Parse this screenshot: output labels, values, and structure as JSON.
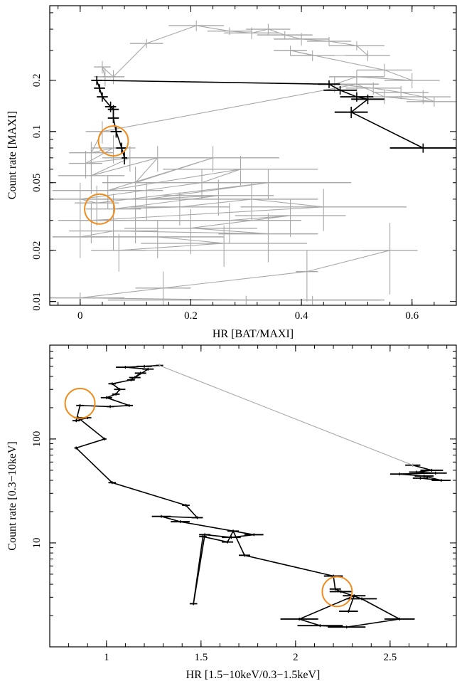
{
  "colors": {
    "grey": "#a8a8a8",
    "black": "#000000",
    "circle": "#f08c1e"
  },
  "chart_data": [
    {
      "type": "scatter",
      "title": "",
      "xlabel": "HR [BAT/MAXI]",
      "ylabel": "Count rate  [MAXI]",
      "xscale": "linear",
      "yscale": "log",
      "xlim": [
        -0.055,
        0.68
      ],
      "ylim": [
        0.0095,
        0.55
      ],
      "xticks": [
        {
          "v": 0,
          "label": "0"
        },
        {
          "v": 0.2,
          "label": "0.2"
        },
        {
          "v": 0.4,
          "label": "0.4"
        },
        {
          "v": 0.6,
          "label": "0.6"
        }
      ],
      "yticks": [
        {
          "v": 0.01,
          "label": "0.01"
        },
        {
          "v": 0.02,
          "label": "0.02"
        },
        {
          "v": 0.05,
          "label": "0.05"
        },
        {
          "v": 0.1,
          "label": "0.1"
        },
        {
          "v": 0.2,
          "label": "0.2"
        }
      ],
      "series": [
        {
          "color": "grey",
          "connect": true,
          "points": [
            [
              0.045,
              0.21,
              0.02,
              0.025
            ],
            [
              0.04,
              0.24,
              0.015,
              0.02
            ],
            [
              0.06,
              0.21,
              0.02,
              0.02
            ],
            [
              0.12,
              0.33,
              0.03,
              0.02
            ],
            [
              0.21,
              0.42,
              0.05,
              0.03
            ],
            [
              0.27,
              0.39,
              0.04,
              0.02
            ],
            [
              0.31,
              0.38,
              0.05,
              0.03
            ],
            [
              0.34,
              0.4,
              0.04,
              0.03
            ],
            [
              0.37,
              0.37,
              0.05,
              0.02
            ],
            [
              0.4,
              0.35,
              0.05,
              0.03
            ],
            [
              0.45,
              0.34,
              0.04,
              0.02
            ],
            [
              0.5,
              0.32,
              0.05,
              0.02
            ],
            [
              0.52,
              0.28,
              0.04,
              0.02
            ],
            [
              0.42,
              0.28,
              0.04,
              0.02
            ],
            [
              0.38,
              0.3,
              0.03,
              0.02
            ],
            [
              0.55,
              0.23,
              0.05,
              0.02
            ],
            [
              0.6,
              0.2,
              0.05,
              0.02
            ],
            [
              0.5,
              0.21,
              0.05,
              0.02
            ],
            [
              0.46,
              0.19,
              0.04,
              0.02
            ],
            [
              0.53,
              0.18,
              0.05,
              0.015
            ],
            [
              0.58,
              0.17,
              0.05,
              0.015
            ],
            [
              0.62,
              0.16,
              0.05,
              0.015
            ],
            [
              0.64,
              0.15,
              0.05,
              0.01
            ],
            [
              0.55,
              0.16,
              0.04,
              0.015
            ],
            [
              0.5,
              0.19,
              0.04,
              0.02
            ],
            [
              0.04,
              0.1,
              0.03,
              0.015
            ],
            [
              0.02,
              0.075,
              0.04,
              0.012
            ],
            [
              0.06,
              0.08,
              0.04,
              0.015
            ],
            [
              0.01,
              0.065,
              0.03,
              0.012
            ],
            [
              0.09,
              0.07,
              0.05,
              0.012
            ],
            [
              0.02,
              0.055,
              0.06,
              0.012
            ],
            [
              0.14,
              0.07,
              0.09,
              0.012
            ],
            [
              0.1,
              0.05,
              0.06,
              0.012
            ],
            [
              0.24,
              0.07,
              0.12,
              0.012
            ],
            [
              0.05,
              0.045,
              0.1,
              0.01
            ],
            [
              0.29,
              0.06,
              0.14,
              0.012
            ],
            [
              0.22,
              0.05,
              0.12,
              0.01
            ],
            [
              0.0,
              0.04,
              0.05,
              0.01
            ],
            [
              0.03,
              0.038,
              0.04,
              0.01
            ],
            [
              0.34,
              0.05,
              0.15,
              0.01
            ],
            [
              0.12,
              0.04,
              0.08,
              0.01
            ],
            [
              0.25,
              0.042,
              0.1,
              0.01
            ],
            [
              0.06,
              0.035,
              0.05,
              0.008
            ],
            [
              0.18,
              0.036,
              0.09,
              0.008
            ],
            [
              0.31,
              0.04,
              0.12,
              0.01
            ],
            [
              0.44,
              0.036,
              0.15,
              0.01
            ],
            [
              0.02,
              0.03,
              0.06,
              0.008
            ],
            [
              0.1,
              0.03,
              0.1,
              0.008
            ],
            [
              0.27,
              0.03,
              0.13,
              0.008
            ],
            [
              0.38,
              0.032,
              0.1,
              0.008
            ],
            [
              0.2,
              0.027,
              0.12,
              0.008
            ],
            [
              0.34,
              0.025,
              0.09,
              0.008
            ],
            [
              0.06,
              0.026,
              0.08,
              0.006
            ],
            [
              0.0,
              0.024,
              0.05,
              0.006
            ],
            [
              0.14,
              0.024,
              0.12,
              0.006
            ],
            [
              0.26,
              0.022,
              0.15,
              0.006
            ],
            [
              0.07,
              0.02,
              0.05,
              0.005
            ],
            [
              0.56,
              0.02,
              0.05,
              0.009
            ],
            [
              0.41,
              0.015,
              0.02,
              0.005
            ],
            [
              0.15,
              0.012,
              0.05,
              0.003
            ],
            [
              0.0,
              0.0105,
              0.08,
              0.0008
            ],
            [
              0.3,
              0.0102,
              0.25,
              0.0006
            ],
            [
              0.42,
              0.0102,
              0.12,
              0.0006
            ]
          ]
        },
        {
          "color": "black",
          "connect": true,
          "points": [
            [
              0.62,
              0.08,
              0.06,
              0.005
            ],
            [
              0.49,
              0.13,
              0.03,
              0.01
            ],
            [
              0.52,
              0.155,
              0.03,
              0.01
            ],
            [
              0.5,
              0.16,
              0.03,
              0.01
            ],
            [
              0.47,
              0.175,
              0.03,
              0.01
            ],
            [
              0.45,
              0.19,
              0.02,
              0.01
            ],
            [
              0.03,
              0.2,
              0.01,
              0.012
            ],
            [
              0.035,
              0.18,
              0.01,
              0.01
            ],
            [
              0.04,
              0.16,
              0.01,
              0.01
            ],
            [
              0.055,
              0.14,
              0.01,
              0.01
            ],
            [
              0.06,
              0.135,
              0.01,
              0.008
            ],
            [
              0.06,
              0.12,
              0.01,
              0.008
            ],
            [
              0.065,
              0.1,
              0.01,
              0.008
            ],
            [
              0.075,
              0.08,
              0.01,
              0.006
            ],
            [
              0.08,
              0.07,
              0.005,
              0.006
            ]
          ]
        }
      ],
      "circles": [
        {
          "x": 0.06,
          "y": 0.088
        },
        {
          "x": 0.035,
          "y": 0.035
        }
      ]
    },
    {
      "type": "scatter",
      "title": "",
      "xlabel": "HR [1.5−10keV/0.3−1.5keV]",
      "ylabel": "Count rate  [0.3−10keV]",
      "xscale": "linear",
      "yscale": "log",
      "xlim": [
        0.7,
        2.85
      ],
      "ylim": [
        1.0,
        800
      ],
      "xticks": [
        {
          "v": 1,
          "label": "1"
        },
        {
          "v": 1.5,
          "label": "1.5"
        },
        {
          "v": 2,
          "label": "2"
        },
        {
          "v": 2.5,
          "label": "2.5"
        }
      ],
      "yticks": [
        {
          "v": 10,
          "label": "10"
        },
        {
          "v": 100,
          "label": "100"
        }
      ],
      "series": [
        {
          "color": "black",
          "connect": true,
          "points": [
            [
              1.28,
              510,
              0.02,
              0
            ],
            [
              1.2,
              500,
              0.04,
              0
            ],
            [
              1.1,
              490,
              0.05,
              0
            ],
            [
              1.22,
              470,
              0.03,
              0
            ],
            [
              1.15,
              390,
              0.03,
              0
            ],
            [
              1.18,
              430,
              0.03,
              0
            ],
            [
              1.13,
              370,
              0.02,
              0
            ],
            [
              1.03,
              340,
              0.02,
              0
            ],
            [
              1.07,
              300,
              0.03,
              0
            ],
            [
              1.05,
              270,
              0.02,
              0
            ],
            [
              1.0,
              250,
              0.03,
              0
            ],
            [
              1.12,
              210,
              0.02,
              0
            ],
            [
              1.02,
              205,
              0.02,
              0
            ],
            [
              0.86,
              210,
              0.02,
              0
            ],
            [
              0.84,
              150,
              0.02,
              0
            ],
            [
              0.9,
              160,
              0.02,
              0
            ],
            [
              0.85,
              160,
              0.02,
              0
            ],
            [
              0.99,
              100,
              0.01,
              0
            ],
            [
              0.84,
              82,
              0.01,
              0
            ],
            [
              1.03,
              38,
              0.02,
              0
            ],
            [
              1.42,
              23,
              0.02,
              0
            ],
            [
              1.48,
              17.5,
              0.03,
              0
            ],
            [
              1.29,
              18,
              0.05,
              0
            ],
            [
              1.39,
              16,
              0.05,
              0
            ],
            [
              1.78,
              12,
              0.05,
              0
            ],
            [
              1.66,
              11.3,
              0.05,
              0
            ],
            [
              1.52,
              12,
              0.03,
              0
            ],
            [
              1.46,
              2.6,
              0.02,
              0
            ],
            [
              1.51,
              11.5,
              0.02,
              0
            ],
            [
              1.64,
              10.2,
              0.03,
              0
            ],
            [
              1.67,
              13,
              0.03,
              0
            ],
            [
              1.73,
              7.6,
              0.03,
              0
            ],
            [
              2.2,
              4.8,
              0.05,
              0
            ],
            [
              2.21,
              3.6,
              0.03,
              0
            ],
            [
              2.24,
              3.4,
              0.06,
              0
            ],
            [
              2.35,
              2.9,
              0.08,
              0
            ],
            [
              2.55,
              1.85,
              0.08,
              0
            ],
            [
              2.27,
              1.55,
              0.1,
              0
            ],
            [
              2.13,
              1.6,
              0.12,
              0
            ],
            [
              2.02,
              1.85,
              0.1,
              0
            ],
            [
              2.31,
              3.1,
              0.06,
              0
            ],
            [
              2.28,
              2.2,
              0.05,
              0
            ]
          ]
        },
        {
          "color": "black",
          "connect": true,
          "points": [
            [
              2.62,
              56,
              0.04,
              0
            ],
            [
              2.72,
              50,
              0.06,
              0
            ],
            [
              2.64,
              48,
              0.04,
              0
            ],
            [
              2.74,
              47,
              0.06,
              0
            ],
            [
              2.55,
              46,
              0.05,
              0
            ],
            [
              2.68,
              44,
              0.05,
              0
            ],
            [
              2.77,
              40,
              0.05,
              0
            ],
            [
              2.66,
              42,
              0.04,
              0
            ]
          ]
        },
        {
          "color": "grey",
          "connect": true,
          "points": [
            [
              1.28,
              510,
              0,
              0
            ],
            [
              2.62,
              56,
              0,
              0
            ]
          ]
        }
      ],
      "circles": [
        {
          "x": 0.86,
          "y": 220
        },
        {
          "x": 2.22,
          "y": 3.4
        }
      ]
    }
  ]
}
